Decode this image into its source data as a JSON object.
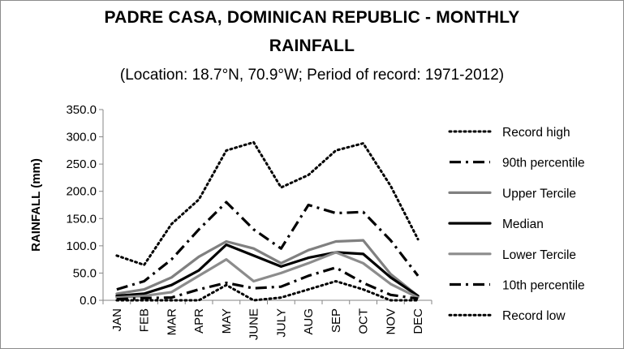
{
  "chart_data": {
    "type": "line",
    "title_line1": "PADRE CASA, DOMINICAN REPUBLIC - MONTHLY",
    "title_line2": "RAINFALL",
    "subtitle": "(Location: 18.7°N, 70.9°W; Period of record: 1971-2012)",
    "xlabel": "",
    "ylabel": "RAINFALL (mm)",
    "ylim": [
      0,
      350
    ],
    "yticks": [
      0,
      50,
      100,
      150,
      200,
      250,
      300,
      350
    ],
    "ytick_labels": [
      "0.0",
      "50.0",
      "100.0",
      "150.0",
      "200.0",
      "250.0",
      "300.0",
      "350.0"
    ],
    "categories": [
      "JAN",
      "FEB",
      "MAR",
      "APR",
      "MAY",
      "JUNE",
      "JULY",
      "AUG",
      "SEP",
      "OCT",
      "NOV",
      "DEC"
    ],
    "grid": false,
    "legend_position": "right",
    "series": [
      {
        "name": "Record high",
        "style": "dotted",
        "color": "#000000",
        "values": [
          82,
          65,
          140,
          185,
          275,
          290,
          207,
          230,
          275,
          288,
          210,
          112
        ]
      },
      {
        "name": "90th percentile",
        "style": "dashdot",
        "color": "#000000",
        "values": [
          20,
          35,
          75,
          130,
          180,
          130,
          95,
          175,
          160,
          162,
          110,
          45
        ]
      },
      {
        "name": "Upper Tercile",
        "style": "solid",
        "color": "#808080",
        "values": [
          12,
          20,
          42,
          80,
          108,
          95,
          68,
          92,
          108,
          110,
          48,
          8
        ]
      },
      {
        "name": "Median",
        "style": "solid",
        "color": "#000000",
        "values": [
          8,
          12,
          28,
          55,
          102,
          82,
          62,
          78,
          88,
          85,
          42,
          8
        ]
      },
      {
        "name": "Lower Tercile",
        "style": "solid",
        "color": "#8c8c8c",
        "values": [
          5,
          8,
          15,
          45,
          75,
          35,
          50,
          68,
          88,
          68,
          30,
          5
        ]
      },
      {
        "name": "10th percentile",
        "style": "dashdot",
        "color": "#000000",
        "values": [
          2,
          4,
          5,
          20,
          32,
          22,
          25,
          45,
          60,
          32,
          10,
          3
        ]
      },
      {
        "name": "Record low",
        "style": "dotted",
        "color": "#000000",
        "values": [
          0,
          0,
          0,
          0,
          28,
          0,
          5,
          20,
          35,
          20,
          0,
          0
        ]
      }
    ]
  }
}
